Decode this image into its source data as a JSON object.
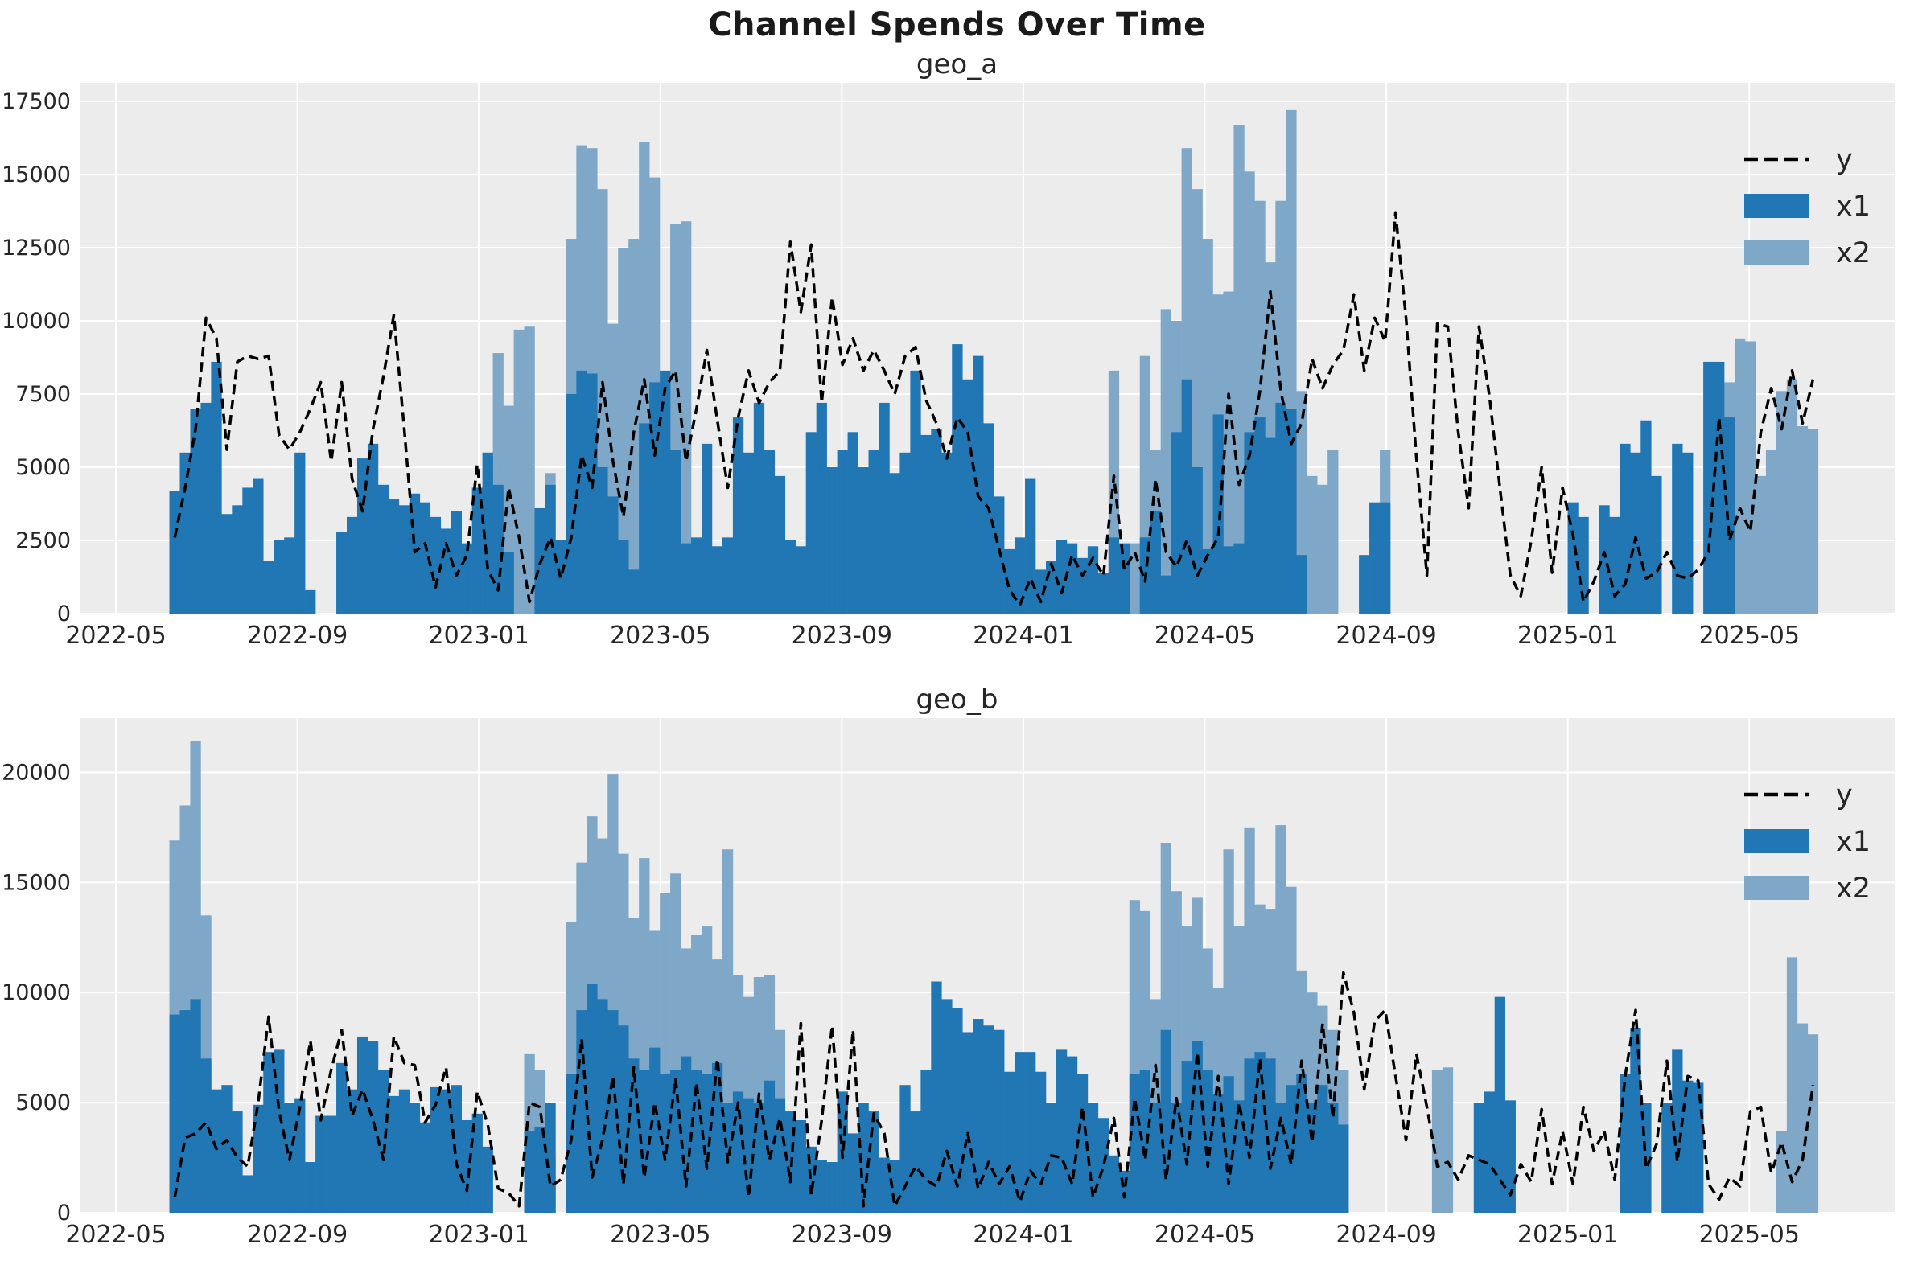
{
  "figure": {
    "title": "Channel Spends Over Time"
  },
  "colors": {
    "x1": "#2176b4",
    "x2": "#7fa8c8",
    "line": "#000000",
    "axes_bg": "#ececec",
    "grid": "#ffffff",
    "tick_label": "#262626"
  },
  "legend": {
    "items": [
      {
        "label": "y",
        "type": "dashed-line"
      },
      {
        "label": "x1",
        "type": "patch"
      },
      {
        "label": "x2",
        "type": "patch"
      }
    ]
  },
  "x_axis": {
    "bars_start_date": "2022-06-06",
    "interval_days": 7,
    "tick_labels": [
      "2022-05",
      "2022-09",
      "2023-01",
      "2023-05",
      "2023-09",
      "2024-01",
      "2024-05",
      "2024-09",
      "2025-01",
      "2025-05"
    ]
  },
  "chart_data": [
    {
      "type": "bar",
      "title": "geo_a",
      "ylabel": "",
      "xlabel": "",
      "ylim": [
        0,
        18130
      ],
      "yticks": [
        0,
        2500,
        5000,
        7500,
        10000,
        12500,
        15000,
        17500
      ],
      "grid": true,
      "legend_position": "upper right",
      "series": [
        {
          "name": "y",
          "type": "line",
          "style": "dashed",
          "values": [
            2600,
            4300,
            6300,
            10100,
            9400,
            5600,
            8600,
            8800,
            8700,
            8800,
            6100,
            5600,
            6200,
            7000,
            7900,
            5200,
            7900,
            4600,
            3500,
            6300,
            8100,
            10200,
            6300,
            2100,
            2400,
            900,
            2400,
            1300,
            2000,
            5100,
            1500,
            800,
            4300,
            2600,
            400,
            1700,
            2600,
            1200,
            2600,
            5400,
            4300,
            7900,
            5200,
            3300,
            6200,
            8000,
            5400,
            7700,
            8300,
            5200,
            7000,
            9000,
            6600,
            4300,
            6700,
            8300,
            7200,
            7900,
            8300,
            12700,
            10300,
            12600,
            7200,
            10800,
            8500,
            9400,
            8300,
            9000,
            8300,
            7500,
            8800,
            9100,
            7300,
            6500,
            5300,
            6700,
            6200,
            4000,
            3600,
            2200,
            800,
            300,
            1200,
            400,
            1700,
            700,
            2000,
            1300,
            1900,
            1300,
            4700,
            1500,
            2100,
            1100,
            4600,
            2100,
            1600,
            2500,
            1300,
            2000,
            2600,
            7500,
            4400,
            5400,
            7600,
            11000,
            7600,
            5800,
            6500,
            8700,
            7700,
            8500,
            9000,
            10900,
            8300,
            10100,
            9300,
            13700,
            10100,
            5300,
            1300,
            9900,
            9800,
            6200,
            3600,
            9800,
            7400,
            4300,
            1300,
            600,
            2500,
            5000,
            1400,
            4300,
            2700,
            400,
            1100,
            2100,
            600,
            1000,
            2600,
            1200,
            1400,
            2100,
            1300,
            1200,
            1500,
            2100,
            6700,
            2500,
            3600,
            2800,
            6200,
            7700,
            6300,
            8300,
            6500,
            8000
          ]
        },
        {
          "name": "x1",
          "type": "bar",
          "values": [
            4200,
            5500,
            7000,
            7200,
            8600,
            3400,
            3700,
            4300,
            4600,
            1800,
            2500,
            2600,
            5500,
            800,
            0,
            0,
            2800,
            3300,
            5300,
            5800,
            4400,
            3900,
            3700,
            4100,
            3800,
            3300,
            2900,
            3500,
            2400,
            4300,
            5500,
            4400,
            2100,
            0,
            0,
            3600,
            4400,
            2500,
            7500,
            8300,
            8200,
            5000,
            4000,
            2500,
            1500,
            6500,
            7900,
            8300,
            5600,
            2400,
            2600,
            5800,
            2300,
            2600,
            6700,
            5500,
            7200,
            5600,
            4700,
            2500,
            2300,
            6200,
            7200,
            5000,
            5600,
            6200,
            5000,
            5600,
            7200,
            4800,
            5500,
            8300,
            6100,
            6300,
            5500,
            9200,
            8000,
            8800,
            6500,
            4000,
            2200,
            2600,
            4600,
            1500,
            1800,
            2500,
            2400,
            1900,
            2300,
            1400,
            2600,
            2400,
            0,
            2600,
            3500,
            1300,
            6200,
            8000,
            5000,
            2200,
            6800,
            2300,
            2400,
            6200,
            6700,
            6000,
            7200,
            7000,
            2000,
            0,
            0,
            0,
            0,
            0,
            2000,
            3800,
            3800,
            0,
            0,
            0,
            0,
            0,
            0,
            0,
            0,
            0,
            0,
            0,
            0,
            0,
            0,
            0,
            0,
            0,
            3800,
            3300,
            0,
            3700,
            3300,
            5800,
            5500,
            6600,
            4700,
            0,
            5800,
            5500,
            0,
            8600,
            8600,
            6700,
            0,
            0,
            0,
            0,
            0,
            0,
            0,
            0
          ]
        },
        {
          "name": "x2",
          "type": "bar",
          "values": [
            0,
            0,
            0,
            0,
            0,
            0,
            0,
            0,
            0,
            0,
            0,
            0,
            0,
            0,
            0,
            0,
            0,
            0,
            0,
            0,
            0,
            0,
            0,
            0,
            0,
            0,
            0,
            0,
            0,
            0,
            0,
            8900,
            7100,
            9700,
            9800,
            0,
            4800,
            0,
            12800,
            16000,
            15900,
            14500,
            9900,
            12500,
            12800,
            16100,
            14900,
            0,
            13300,
            13400,
            1500,
            0,
            0,
            0,
            0,
            0,
            0,
            0,
            0,
            0,
            0,
            0,
            0,
            0,
            0,
            0,
            0,
            0,
            0,
            0,
            0,
            0,
            0,
            0,
            0,
            0,
            0,
            0,
            0,
            0,
            0,
            0,
            0,
            0,
            0,
            0,
            0,
            0,
            0,
            0,
            8300,
            0,
            2400,
            8800,
            5600,
            10400,
            10000,
            15900,
            14500,
            12800,
            10900,
            11000,
            16700,
            15100,
            14100,
            12000,
            14100,
            17200,
            7600,
            4700,
            4400,
            5600,
            0,
            0,
            0,
            0,
            5600,
            0,
            0,
            0,
            0,
            0,
            0,
            0,
            0,
            0,
            0,
            0,
            0,
            0,
            0,
            0,
            0,
            0,
            0,
            0,
            0,
            0,
            0,
            0,
            0,
            0,
            0,
            0,
            0,
            0,
            0,
            0,
            0,
            7900,
            9400,
            9300,
            4700,
            5600,
            7600,
            8000,
            6400,
            6300
          ]
        }
      ]
    },
    {
      "type": "bar",
      "title": "geo_b",
      "ylabel": "",
      "xlabel": "",
      "ylim": [
        0,
        22460
      ],
      "yticks": [
        0,
        5000,
        10000,
        15000,
        20000
      ],
      "grid": true,
      "legend_position": "upper right",
      "series": [
        {
          "name": "y",
          "type": "line",
          "style": "dashed",
          "values": [
            700,
            3400,
            3600,
            4100,
            2900,
            3300,
            2500,
            2100,
            5000,
            8900,
            4600,
            2400,
            4800,
            7800,
            4200,
            6500,
            8300,
            4400,
            5600,
            4200,
            2400,
            8000,
            6800,
            6700,
            4100,
            4900,
            6600,
            2200,
            1000,
            5500,
            4000,
            1100,
            900,
            300,
            5000,
            4800,
            1200,
            1500,
            3300,
            7900,
            1600,
            3300,
            6200,
            1300,
            6600,
            1600,
            5000,
            2400,
            6100,
            1200,
            5900,
            2000,
            7000,
            2300,
            5000,
            700,
            5400,
            2400,
            4300,
            1400,
            8600,
            800,
            4200,
            8500,
            2500,
            8300,
            300,
            4500,
            3600,
            300,
            1200,
            2100,
            1500,
            1200,
            2800,
            1200,
            3600,
            1100,
            2300,
            1300,
            2100,
            500,
            1900,
            1300,
            2600,
            2500,
            1300,
            4800,
            700,
            2100,
            4300,
            700,
            5200,
            2400,
            6700,
            1500,
            5200,
            2200,
            7300,
            2100,
            6200,
            1300,
            5000,
            2500,
            7000,
            2000,
            4300,
            2200,
            6900,
            3200,
            8600,
            4300,
            10900,
            9100,
            5600,
            8700,
            9200,
            6200,
            3300,
            7200,
            4800,
            2100,
            2300,
            1500,
            2600,
            2400,
            2200,
            1500,
            800,
            2200,
            1400,
            4700,
            1300,
            3700,
            1300,
            4800,
            2800,
            3700,
            1500,
            6200,
            9200,
            2000,
            3100,
            6900,
            2300,
            6200,
            6000,
            1300,
            600,
            1600,
            1200,
            4600,
            4800,
            1800,
            3200,
            1400,
            2400,
            5800
          ]
        },
        {
          "name": "x1",
          "type": "bar",
          "values": [
            9000,
            9200,
            9700,
            7000,
            5600,
            5800,
            4600,
            1700,
            4900,
            7300,
            7400,
            5000,
            5200,
            2300,
            4400,
            4400,
            6800,
            5600,
            8000,
            7800,
            6500,
            5300,
            5600,
            5000,
            4100,
            5700,
            5600,
            5800,
            4200,
            4500,
            3000,
            0,
            0,
            0,
            3700,
            3900,
            5000,
            0,
            6300,
            9200,
            10400,
            9700,
            9200,
            8500,
            7000,
            6500,
            7500,
            6300,
            6500,
            7100,
            6500,
            6300,
            6800,
            5000,
            5500,
            5200,
            5000,
            6000,
            5200,
            4600,
            4200,
            3000,
            2400,
            2300,
            5500,
            3600,
            5000,
            4600,
            2500,
            2400,
            5800,
            4600,
            6500,
            10500,
            9700,
            9300,
            8200,
            8800,
            8500,
            8300,
            6400,
            7300,
            7300,
            6400,
            5000,
            7400,
            7100,
            6300,
            5000,
            4300,
            2600,
            1900,
            6300,
            6500,
            5000,
            8300,
            5000,
            6900,
            7800,
            6500,
            5400,
            6200,
            5100,
            7000,
            7300,
            7000,
            5000,
            5800,
            6300,
            5000,
            5800,
            5000,
            4000,
            0,
            0,
            0,
            0,
            0,
            0,
            0,
            0,
            0,
            0,
            0,
            0,
            5000,
            5500,
            9800,
            5100,
            0,
            0,
            0,
            0,
            0,
            0,
            0,
            0,
            0,
            0,
            6300,
            8400,
            5000,
            0,
            5000,
            7400,
            6000,
            5900,
            0,
            0,
            0,
            0,
            0,
            0,
            0,
            0,
            0,
            0,
            0
          ]
        },
        {
          "name": "x2",
          "type": "bar",
          "values": [
            16900,
            18500,
            21400,
            13500,
            0,
            0,
            0,
            0,
            0,
            0,
            0,
            0,
            0,
            0,
            0,
            0,
            0,
            0,
            0,
            0,
            0,
            0,
            0,
            0,
            0,
            0,
            0,
            0,
            0,
            0,
            0,
            0,
            0,
            0,
            7200,
            6500,
            2600,
            0,
            13200,
            15900,
            18000,
            17000,
            19900,
            16300,
            13400,
            16100,
            12800,
            14500,
            15400,
            12000,
            12600,
            13000,
            11500,
            16500,
            10800,
            9800,
            10700,
            10800,
            8300,
            0,
            0,
            0,
            0,
            0,
            0,
            0,
            0,
            0,
            0,
            0,
            0,
            0,
            0,
            0,
            0,
            0,
            0,
            0,
            0,
            0,
            0,
            0,
            0,
            0,
            0,
            0,
            0,
            0,
            0,
            0,
            0,
            0,
            14200,
            13700,
            9700,
            16800,
            14600,
            13000,
            14300,
            12000,
            10200,
            16500,
            13000,
            17500,
            14000,
            13800,
            17600,
            14800,
            11000,
            10000,
            9400,
            8300,
            6500,
            0,
            0,
            0,
            0,
            0,
            0,
            0,
            0,
            6500,
            6600,
            0,
            0,
            0,
            0,
            0,
            0,
            0,
            0,
            0,
            0,
            0,
            0,
            0,
            0,
            0,
            0,
            0,
            0,
            0,
            0,
            0,
            0,
            0,
            0,
            0,
            0,
            0,
            0,
            0,
            0,
            0,
            3700,
            11600,
            8600,
            8100
          ]
        }
      ]
    }
  ]
}
